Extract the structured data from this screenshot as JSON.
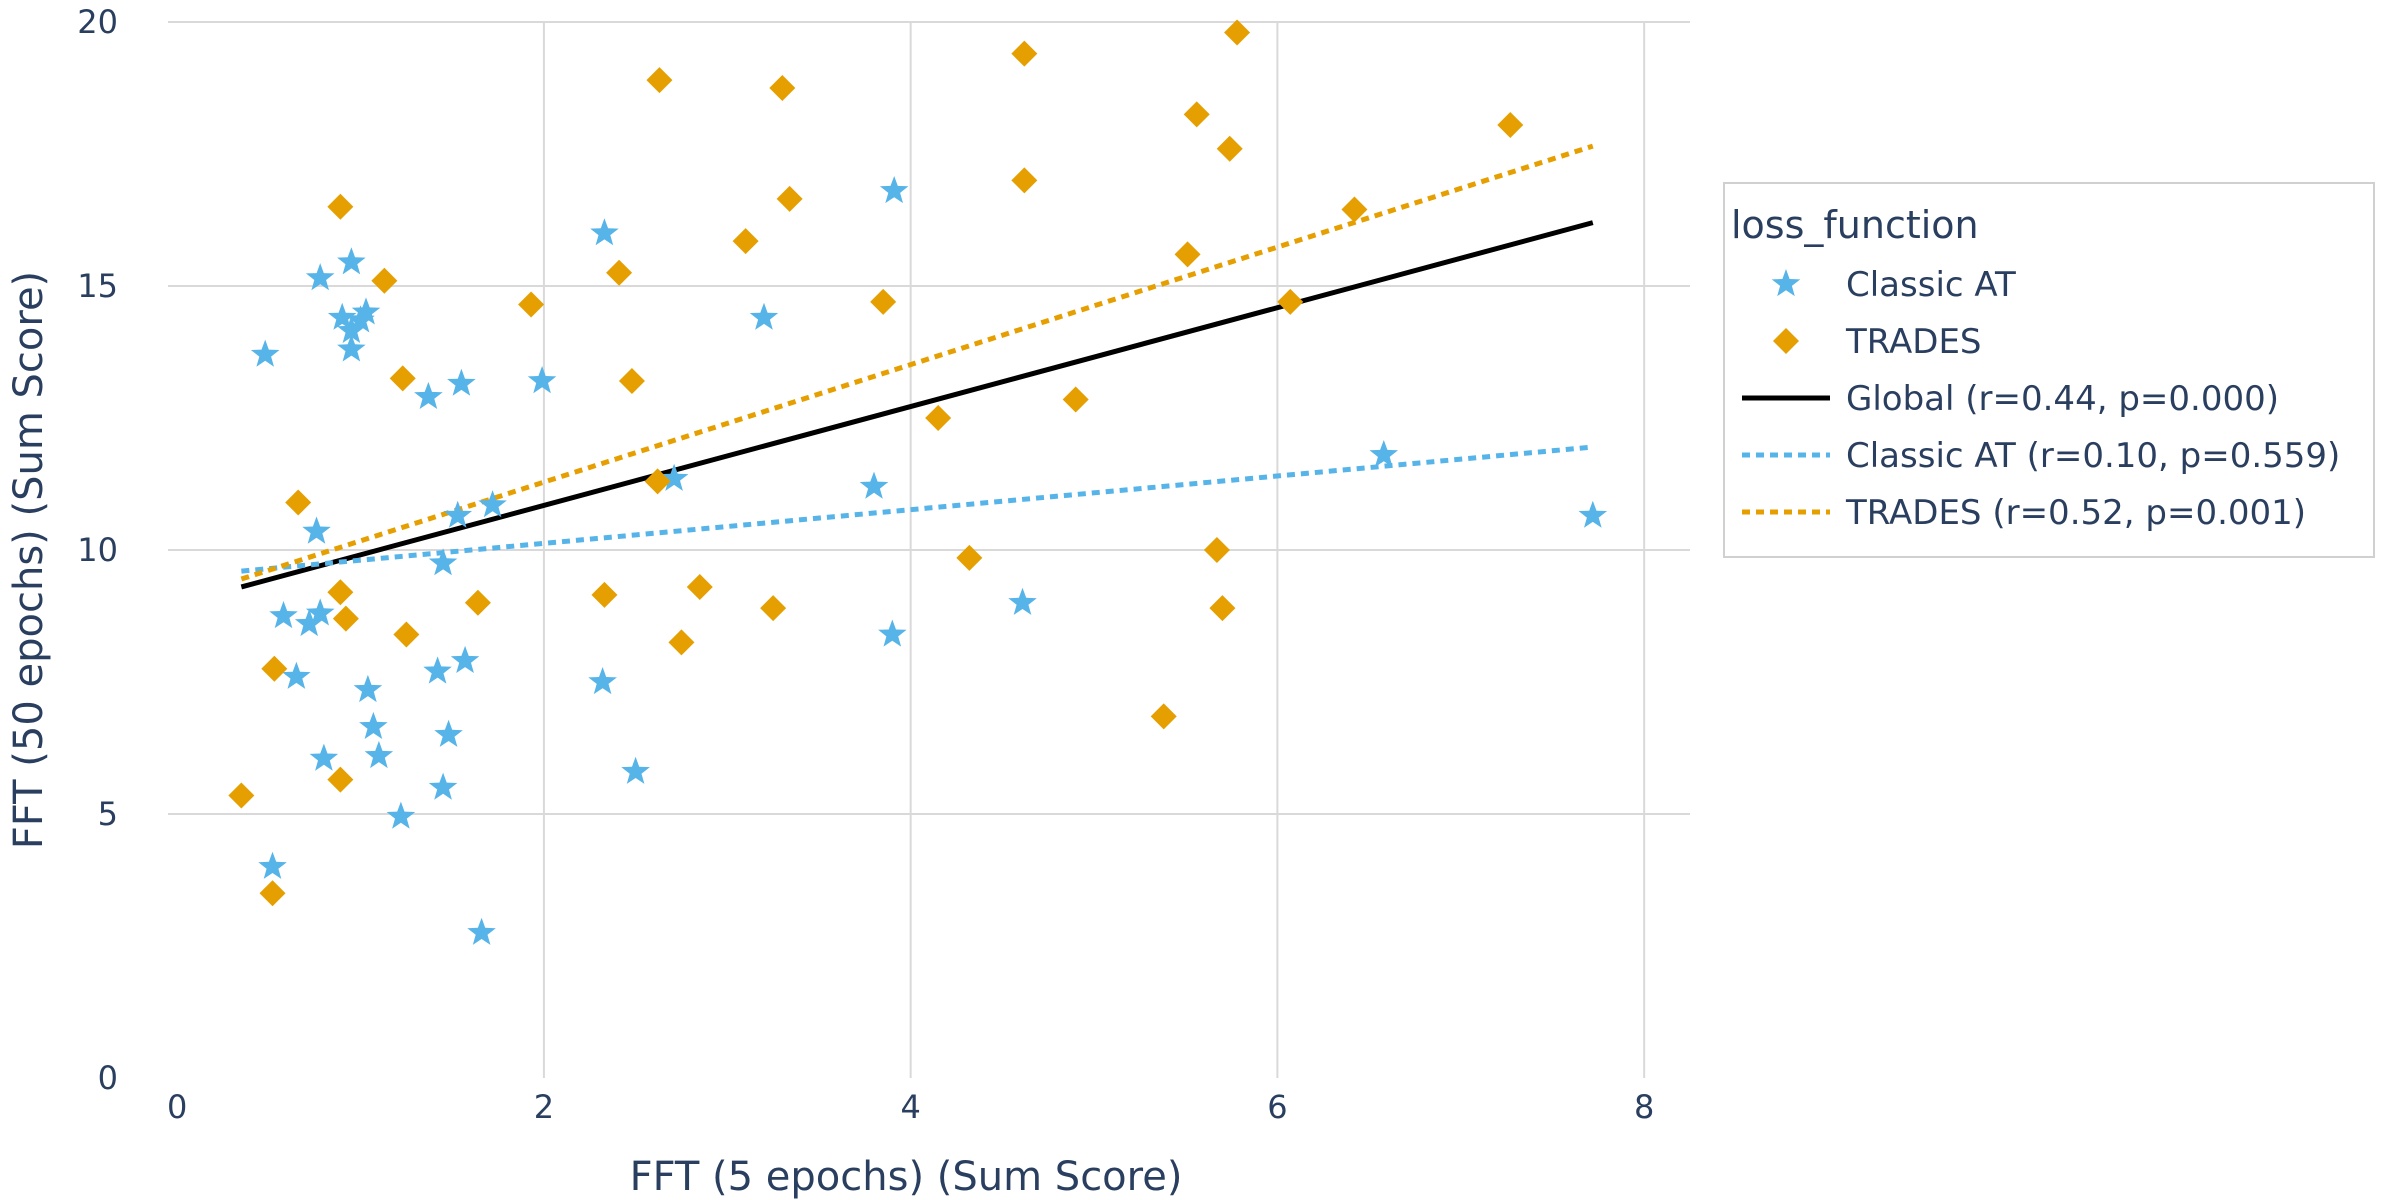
{
  "chart_data": {
    "type": "scatter",
    "xlabel": "FFT (5 epochs) (Sum Score)",
    "ylabel": "FFT (50 epochs) (Sum Score)",
    "xlim": [
      -0.05,
      8.25
    ],
    "ylim": [
      0,
      20
    ],
    "xticks": [
      "0",
      "2",
      "4",
      "6",
      "8"
    ],
    "yticks": [
      "0",
      "5",
      "10",
      "15",
      "20"
    ],
    "xtick_values": [
      0,
      2,
      4,
      6,
      8
    ],
    "ytick_values": [
      0,
      5,
      10,
      15,
      20
    ],
    "grid": true,
    "legend": {
      "title": "loss_function",
      "placement": "right"
    },
    "colors": {
      "classic": "#56b4e9",
      "trades": "#e69f00",
      "global": "#000000",
      "grid": "#d9d9d9",
      "text": "#2a3f5f"
    },
    "series": [
      {
        "name": "Classic AT",
        "marker": "star",
        "color": "#56b4e9",
        "points": [
          [
            0.48,
            13.7
          ],
          [
            0.52,
            4.0
          ],
          [
            0.58,
            8.75
          ],
          [
            0.65,
            7.6
          ],
          [
            0.72,
            8.6
          ],
          [
            0.78,
            8.8
          ],
          [
            0.76,
            10.35
          ],
          [
            0.78,
            15.15
          ],
          [
            0.8,
            6.05
          ],
          [
            0.9,
            14.4
          ],
          [
            0.95,
            15.45
          ],
          [
            0.95,
            14.15
          ],
          [
            0.95,
            13.8
          ],
          [
            1.0,
            14.35
          ],
          [
            1.03,
            14.5
          ],
          [
            1.04,
            7.35
          ],
          [
            1.07,
            6.65
          ],
          [
            1.1,
            6.1
          ],
          [
            1.22,
            4.95
          ],
          [
            1.37,
            12.9
          ],
          [
            1.42,
            7.7
          ],
          [
            1.45,
            5.5
          ],
          [
            1.45,
            9.75
          ],
          [
            1.48,
            6.5
          ],
          [
            1.53,
            10.65
          ],
          [
            1.55,
            13.15
          ],
          [
            1.57,
            7.9
          ],
          [
            1.66,
            2.75
          ],
          [
            1.72,
            10.85
          ],
          [
            1.99,
            13.2
          ],
          [
            2.32,
            7.5
          ],
          [
            2.33,
            16.0
          ],
          [
            2.5,
            5.8
          ],
          [
            2.71,
            11.35
          ],
          [
            3.2,
            14.4
          ],
          [
            3.8,
            11.2
          ],
          [
            3.9,
            8.4
          ],
          [
            3.91,
            16.8
          ],
          [
            4.61,
            9.0
          ],
          [
            6.58,
            11.8
          ],
          [
            7.72,
            10.65
          ]
        ]
      },
      {
        "name": "TRADES",
        "marker": "diamond",
        "color": "#e69f00",
        "points": [
          [
            0.35,
            5.35
          ],
          [
            0.52,
            3.5
          ],
          [
            0.53,
            7.75
          ],
          [
            0.66,
            10.9
          ],
          [
            0.89,
            16.5
          ],
          [
            0.89,
            9.2
          ],
          [
            0.89,
            5.65
          ],
          [
            0.92,
            8.7
          ],
          [
            1.13,
            15.1
          ],
          [
            1.23,
            13.25
          ],
          [
            1.25,
            8.4
          ],
          [
            1.64,
            9.0
          ],
          [
            1.93,
            14.65
          ],
          [
            2.33,
            9.15
          ],
          [
            2.41,
            15.25
          ],
          [
            2.48,
            13.2
          ],
          [
            2.62,
            11.3
          ],
          [
            2.63,
            18.9
          ],
          [
            2.75,
            8.25
          ],
          [
            2.85,
            9.3
          ],
          [
            3.1,
            15.85
          ],
          [
            3.25,
            8.9
          ],
          [
            3.3,
            18.75
          ],
          [
            3.34,
            16.65
          ],
          [
            3.85,
            14.7
          ],
          [
            4.15,
            12.5
          ],
          [
            4.32,
            9.85
          ],
          [
            4.62,
            19.4
          ],
          [
            4.62,
            17.0
          ],
          [
            4.9,
            12.85
          ],
          [
            5.38,
            6.85
          ],
          [
            5.51,
            15.6
          ],
          [
            5.56,
            18.25
          ],
          [
            5.67,
            10.0
          ],
          [
            5.7,
            8.9
          ],
          [
            5.74,
            17.6
          ],
          [
            5.78,
            19.8
          ],
          [
            6.07,
            14.7
          ],
          [
            6.42,
            16.45
          ],
          [
            7.27,
            18.05
          ]
        ]
      }
    ],
    "trendlines": [
      {
        "name": "Global (r=0.44, p=0.000)",
        "color": "#000000",
        "dash": "solid",
        "x": [
          0.35,
          7.72
        ],
        "y": [
          9.3,
          16.2
        ]
      },
      {
        "name": "Classic AT (r=0.10, p=0.559)",
        "color": "#56b4e9",
        "dash": "dot",
        "x": [
          0.35,
          7.72
        ],
        "y": [
          9.6,
          11.95
        ]
      },
      {
        "name": "TRADES (r=0.52, p=0.001)",
        "color": "#e69f00",
        "dash": "dot",
        "x": [
          0.35,
          7.72
        ],
        "y": [
          9.45,
          17.65
        ]
      }
    ]
  }
}
